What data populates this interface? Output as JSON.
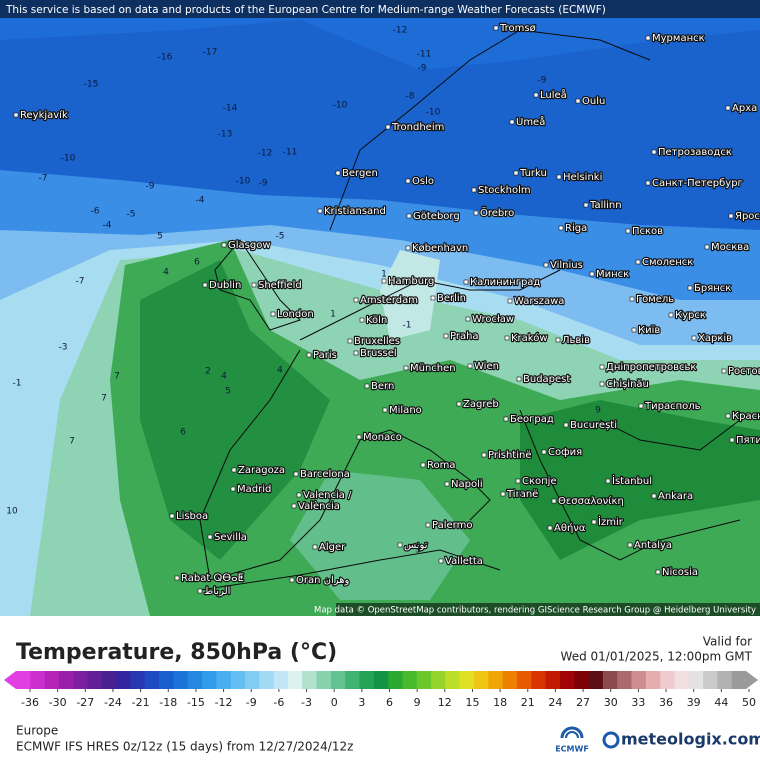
{
  "header": {
    "notice": "This service is based on data and products of the European Centre for Medium-range Weather Forecasts (ECMWF)"
  },
  "map": {
    "attribution": "Map data © OpenStreetMap contributors, rendering GIScience Research Group @ Heidelberg University",
    "cities": [
      "Reykjavík",
      "Tromsø",
      "Мурманск",
      "Luleå",
      "Oulu",
      "Арха",
      "Trondheim",
      "Umeå",
      "Петрозаводск",
      "Bergen",
      "Oslo",
      "Turku",
      "Helsinki",
      "Санкт-Петербург",
      "Stockholm",
      "Kristiansand",
      "Göteborg",
      "Örebro",
      "Tallinn",
      "Ярос",
      "Riga",
      "Псков",
      "Glasgow",
      "København",
      "Москва",
      "Vilnius",
      "Смоленск",
      "Dublin",
      "Sheffield",
      "Hamburg",
      "Калининград",
      "Минск",
      "Брянск",
      "Amsterdam",
      "Berlin",
      "Warszawa",
      "Гомель",
      "London",
      "Köln",
      "Wrocław",
      "Курск",
      "Київ",
      "Bruxelles",
      "Brussel",
      "Praha",
      "Kraków",
      "Львів",
      "Харків",
      "Paris",
      "München",
      "Wien",
      "Дніпропетровськ",
      "Bern",
      "Budapest",
      "Chișinău",
      "Milano",
      "Zagreb",
      "Тирасполь",
      "Београд",
      "Monaco",
      "București",
      "София",
      "Zaragoza",
      "Barcelona",
      "Roma",
      "Prishtinë",
      "Скопје",
      "İstanbul",
      "Madrid",
      "Napoli",
      "Tiranë",
      "Θεσσαλονίκη",
      "Ankara",
      "Valencia /",
      "València",
      "Lisboa",
      "İzmir",
      "Αθήνα",
      "Sevilla",
      "Palermo",
      "Antalya",
      "Alger",
      "تونس",
      "Valletta",
      "Rabat ⵕⴱⴰⵟ",
      "الرباط",
      "Oran وهران",
      "Nicosia",
      "Ростов",
      "Красно",
      "Пяти"
    ],
    "contour_labels": [
      -12,
      -11,
      -9,
      -16,
      -17,
      -15,
      -14,
      -13,
      -12,
      -11,
      -10,
      -10,
      -9,
      -10,
      -9,
      -7,
      -6,
      -5,
      -4,
      -7,
      -3,
      -1,
      5,
      4,
      6,
      7,
      7,
      7,
      10,
      6,
      2,
      4,
      5,
      1,
      -1,
      1,
      4,
      5,
      3,
      -8,
      -10,
      -9,
      -5,
      -4,
      9
    ]
  },
  "legend": {
    "title": "Temperature, 850hPa (°C)",
    "valid_label": "Valid for",
    "valid_time": "Wed 01/01/2025, 12:00pm GMT",
    "ticks": [
      -36,
      -30,
      -27,
      -24,
      -21,
      -18,
      -15,
      -12,
      -9,
      -6,
      -3,
      0,
      3,
      6,
      9,
      12,
      15,
      18,
      21,
      24,
      27,
      30,
      33,
      36,
      39,
      44,
      50
    ],
    "colors": [
      "#e23ee2",
      "#cc30cc",
      "#b424b8",
      "#9a1ea8",
      "#7e1ea0",
      "#632096",
      "#4a2090",
      "#3424a0",
      "#2638b0",
      "#1c4cc0",
      "#1a60cc",
      "#1c74d8",
      "#2488e2",
      "#329cea",
      "#48aef0",
      "#64bef2",
      "#82ccf4",
      "#a2daf6",
      "#c2e6f6",
      "#dcf2f0",
      "#b2e2cc",
      "#88d2ae",
      "#62c292",
      "#40b272",
      "#24a256",
      "#129444",
      "#2aa832",
      "#48ba2c",
      "#6cc82a",
      "#94d42c",
      "#bede2c",
      "#e2e024",
      "#f0c614",
      "#f0a606",
      "#ee8000",
      "#e85a00",
      "#d83400",
      "#c01a00",
      "#a00404",
      "#7c0006",
      "#5c0e14",
      "#8a4a4e",
      "#ac6a6e",
      "#cc8c90",
      "#e4aeb0",
      "#f0cacc",
      "#f2e0e0",
      "#e2e2e2",
      "#cacaca",
      "#b2b2b2",
      "#9a9a9a"
    ]
  },
  "footer": {
    "region": "Europe",
    "model": "ECMWF IFS HRES 0z/12z (15 days) from 12/27/2024/12z",
    "ecmwf_logo": "ECMWF",
    "brand": "meteologix.com"
  }
}
